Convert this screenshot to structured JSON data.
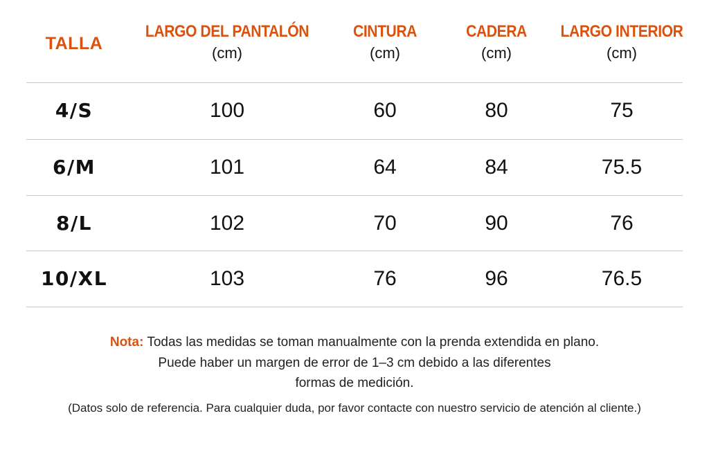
{
  "header": {
    "talla": "TALLA",
    "columns": [
      {
        "title": "LARGO DEL PANTALÓN",
        "unit": "(cm)"
      },
      {
        "title": "CINTURA",
        "unit": "(cm)"
      },
      {
        "title": "CADERA",
        "unit": "(cm)"
      },
      {
        "title": "LARGO INTERIOR",
        "unit": "(cm)"
      }
    ]
  },
  "rows": [
    {
      "size": "4/S",
      "largo": "100",
      "cintura": "60",
      "cadera": "80",
      "interior": "75"
    },
    {
      "size": "6/M",
      "largo": "101",
      "cintura": "64",
      "cadera": "84",
      "interior": "75.5"
    },
    {
      "size": "8/L",
      "largo": "102",
      "cintura": "70",
      "cadera": "90",
      "interior": "76"
    },
    {
      "size": "10/XL",
      "largo": "103",
      "cintura": "76",
      "cadera": "96",
      "interior": "76.5"
    }
  ],
  "note": {
    "label": "Nota:",
    "line1": " Todas las medidas se toman manualmente con la prenda extendida en plano.",
    "line2": "Puede haber un margen de error de 1–3 cm debido a las diferentes",
    "line3": "formas de medición.",
    "line4": "(Datos solo de referencia. Para cualquier duda, por favor contacte con nuestro servicio de atención al cliente.)"
  },
  "colors": {
    "accent": "#d9530f",
    "text": "#111111",
    "rule": "#c8c8c8"
  }
}
